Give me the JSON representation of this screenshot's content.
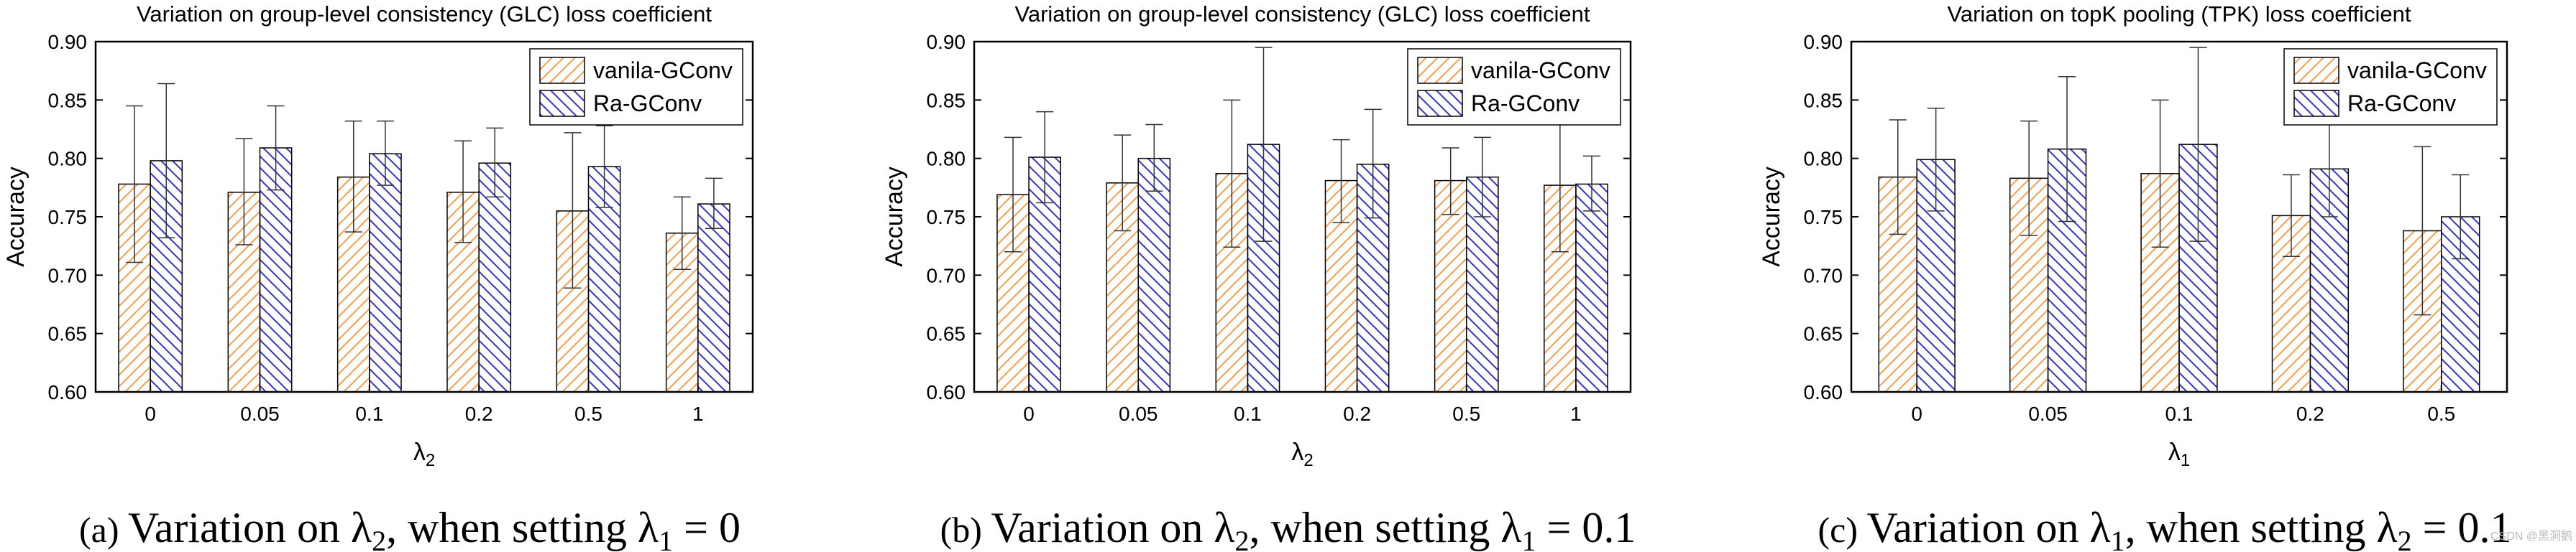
{
  "chart_data": [
    {
      "type": "bar",
      "title": "Variation on group-level consistency (GLC) loss coefficient",
      "xlabel": "λ",
      "xlabel_sub": "2",
      "ylabel": "Accuracy",
      "ylim": [
        0.6,
        0.9
      ],
      "yticks": [
        "0.60",
        "0.65",
        "0.70",
        "0.75",
        "0.80",
        "0.85",
        "0.90"
      ],
      "categories": [
        "0",
        "0.05",
        "0.1",
        "0.2",
        "0.5",
        "1"
      ],
      "series": [
        {
          "name": "vanila-GConv",
          "values": [
            0.778,
            0.771,
            0.784,
            0.771,
            0.755,
            0.736
          ],
          "err_low": [
            0.711,
            0.726,
            0.737,
            0.728,
            0.689,
            0.705
          ],
          "err_high": [
            0.845,
            0.817,
            0.832,
            0.815,
            0.822,
            0.767
          ]
        },
        {
          "name": "Ra-GConv",
          "values": [
            0.798,
            0.809,
            0.804,
            0.796,
            0.793,
            0.761
          ],
          "err_low": [
            0.732,
            0.773,
            0.777,
            0.767,
            0.758,
            0.74
          ],
          "err_high": [
            0.864,
            0.845,
            0.832,
            0.826,
            0.828,
            0.783
          ]
        }
      ],
      "caption": {
        "prefix": "(a)",
        "text": "Variation on λ",
        "sub1": "2",
        "mid": ", when setting λ",
        "sub2": "1",
        "suffix": " = 0"
      }
    },
    {
      "type": "bar",
      "title": "Variation on group-level consistency (GLC) loss coefficient",
      "xlabel": "λ",
      "xlabel_sub": "2",
      "ylabel": "Accuracy",
      "ylim": [
        0.6,
        0.9
      ],
      "yticks": [
        "0.60",
        "0.65",
        "0.70",
        "0.75",
        "0.80",
        "0.85",
        "0.90"
      ],
      "categories": [
        "0",
        "0.05",
        "0.1",
        "0.2",
        "0.5",
        "1"
      ],
      "series": [
        {
          "name": "vanila-GConv",
          "values": [
            0.769,
            0.779,
            0.787,
            0.781,
            0.781,
            0.777
          ],
          "err_low": [
            0.72,
            0.738,
            0.724,
            0.745,
            0.752,
            0.72
          ],
          "err_high": [
            0.818,
            0.82,
            0.85,
            0.816,
            0.809,
            0.834
          ]
        },
        {
          "name": "Ra-GConv",
          "values": [
            0.801,
            0.8,
            0.812,
            0.795,
            0.784,
            0.778
          ],
          "err_low": [
            0.762,
            0.772,
            0.729,
            0.749,
            0.75,
            0.755
          ],
          "err_high": [
            0.84,
            0.829,
            0.895,
            0.842,
            0.818,
            0.802
          ]
        }
      ],
      "caption": {
        "prefix": "(b)",
        "text": "Variation on λ",
        "sub1": "2",
        "mid": ", when setting λ",
        "sub2": "1",
        "suffix": " = 0.1"
      }
    },
    {
      "type": "bar",
      "title": "Variation on topK pooling (TPK) loss coefficient",
      "xlabel": "λ",
      "xlabel_sub": "1",
      "ylabel": "Accuracy",
      "ylim": [
        0.6,
        0.9
      ],
      "yticks": [
        "0.60",
        "0.65",
        "0.70",
        "0.75",
        "0.80",
        "0.85",
        "0.90"
      ],
      "categories": [
        "0",
        "0.05",
        "0.1",
        "0.2",
        "0.5"
      ],
      "series": [
        {
          "name": "vanila-GConv",
          "values": [
            0.784,
            0.783,
            0.787,
            0.751,
            0.738
          ],
          "err_low": [
            0.735,
            0.734,
            0.724,
            0.716,
            0.666
          ],
          "err_high": [
            0.833,
            0.832,
            0.85,
            0.786,
            0.81
          ]
        },
        {
          "name": "Ra-GConv",
          "values": [
            0.799,
            0.808,
            0.812,
            0.791,
            0.75
          ],
          "err_low": [
            0.755,
            0.746,
            0.729,
            0.75,
            0.714
          ],
          "err_high": [
            0.843,
            0.87,
            0.895,
            0.832,
            0.786
          ]
        }
      ],
      "caption": {
        "prefix": "(c)",
        "text": "Variation on λ",
        "sub1": "1",
        "mid": ", when setting λ",
        "sub2": "2",
        "suffix": " = 0.1"
      }
    }
  ],
  "colors": {
    "vanila": "#f0a050",
    "ra": "#3333cc",
    "axis": "#000000",
    "bar_border": "#000000"
  },
  "watermark": "CSDN @黑洞鹅"
}
